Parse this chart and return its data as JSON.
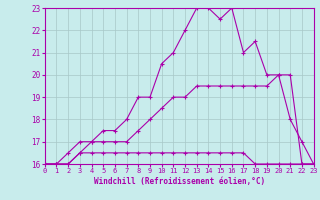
{
  "xlabel": "Windchill (Refroidissement éolien,°C)",
  "background_color": "#c8ecec",
  "grid_color": "#a8c8c8",
  "line_color": "#aa00aa",
  "xmin": 0,
  "xmax": 23,
  "ymin": 16,
  "ymax": 23,
  "line1_x": [
    0,
    1,
    2,
    3,
    4,
    5,
    6,
    7,
    8,
    9,
    10,
    11,
    12,
    13,
    14,
    15,
    16,
    17,
    18,
    19,
    20,
    21,
    22,
    23
  ],
  "line1_y": [
    16.0,
    16.0,
    16.0,
    16.5,
    16.5,
    16.5,
    16.5,
    16.5,
    16.5,
    16.5,
    16.5,
    16.5,
    16.5,
    16.5,
    16.5,
    16.5,
    16.5,
    16.5,
    16.0,
    16.0,
    16.0,
    16.0,
    16.0,
    16.0
  ],
  "line2_x": [
    0,
    1,
    2,
    3,
    4,
    5,
    6,
    7,
    8,
    9,
    10,
    11,
    12,
    13,
    14,
    15,
    16,
    17,
    18,
    19,
    20,
    21,
    22,
    23
  ],
  "line2_y": [
    16.0,
    16.0,
    16.5,
    17.0,
    17.0,
    17.5,
    17.5,
    18.0,
    19.0,
    19.0,
    20.5,
    21.0,
    22.0,
    23.0,
    23.0,
    22.5,
    23.0,
    21.0,
    21.5,
    20.0,
    20.0,
    18.0,
    17.0,
    16.0
  ],
  "line3_x": [
    0,
    1,
    2,
    3,
    4,
    5,
    6,
    7,
    8,
    9,
    10,
    11,
    12,
    13,
    14,
    15,
    16,
    17,
    18,
    19,
    20,
    21,
    22,
    23
  ],
  "line3_y": [
    16.0,
    16.0,
    16.0,
    16.5,
    17.0,
    17.0,
    17.0,
    17.0,
    17.5,
    18.0,
    18.5,
    19.0,
    19.0,
    19.5,
    19.5,
    19.5,
    19.5,
    19.5,
    19.5,
    19.5,
    20.0,
    20.0,
    16.0,
    16.0
  ],
  "yticks": [
    16,
    17,
    18,
    19,
    20,
    21,
    22,
    23
  ],
  "xticks": [
    0,
    1,
    2,
    3,
    4,
    5,
    6,
    7,
    8,
    9,
    10,
    11,
    12,
    13,
    14,
    15,
    16,
    17,
    18,
    19,
    20,
    21,
    22,
    23
  ]
}
